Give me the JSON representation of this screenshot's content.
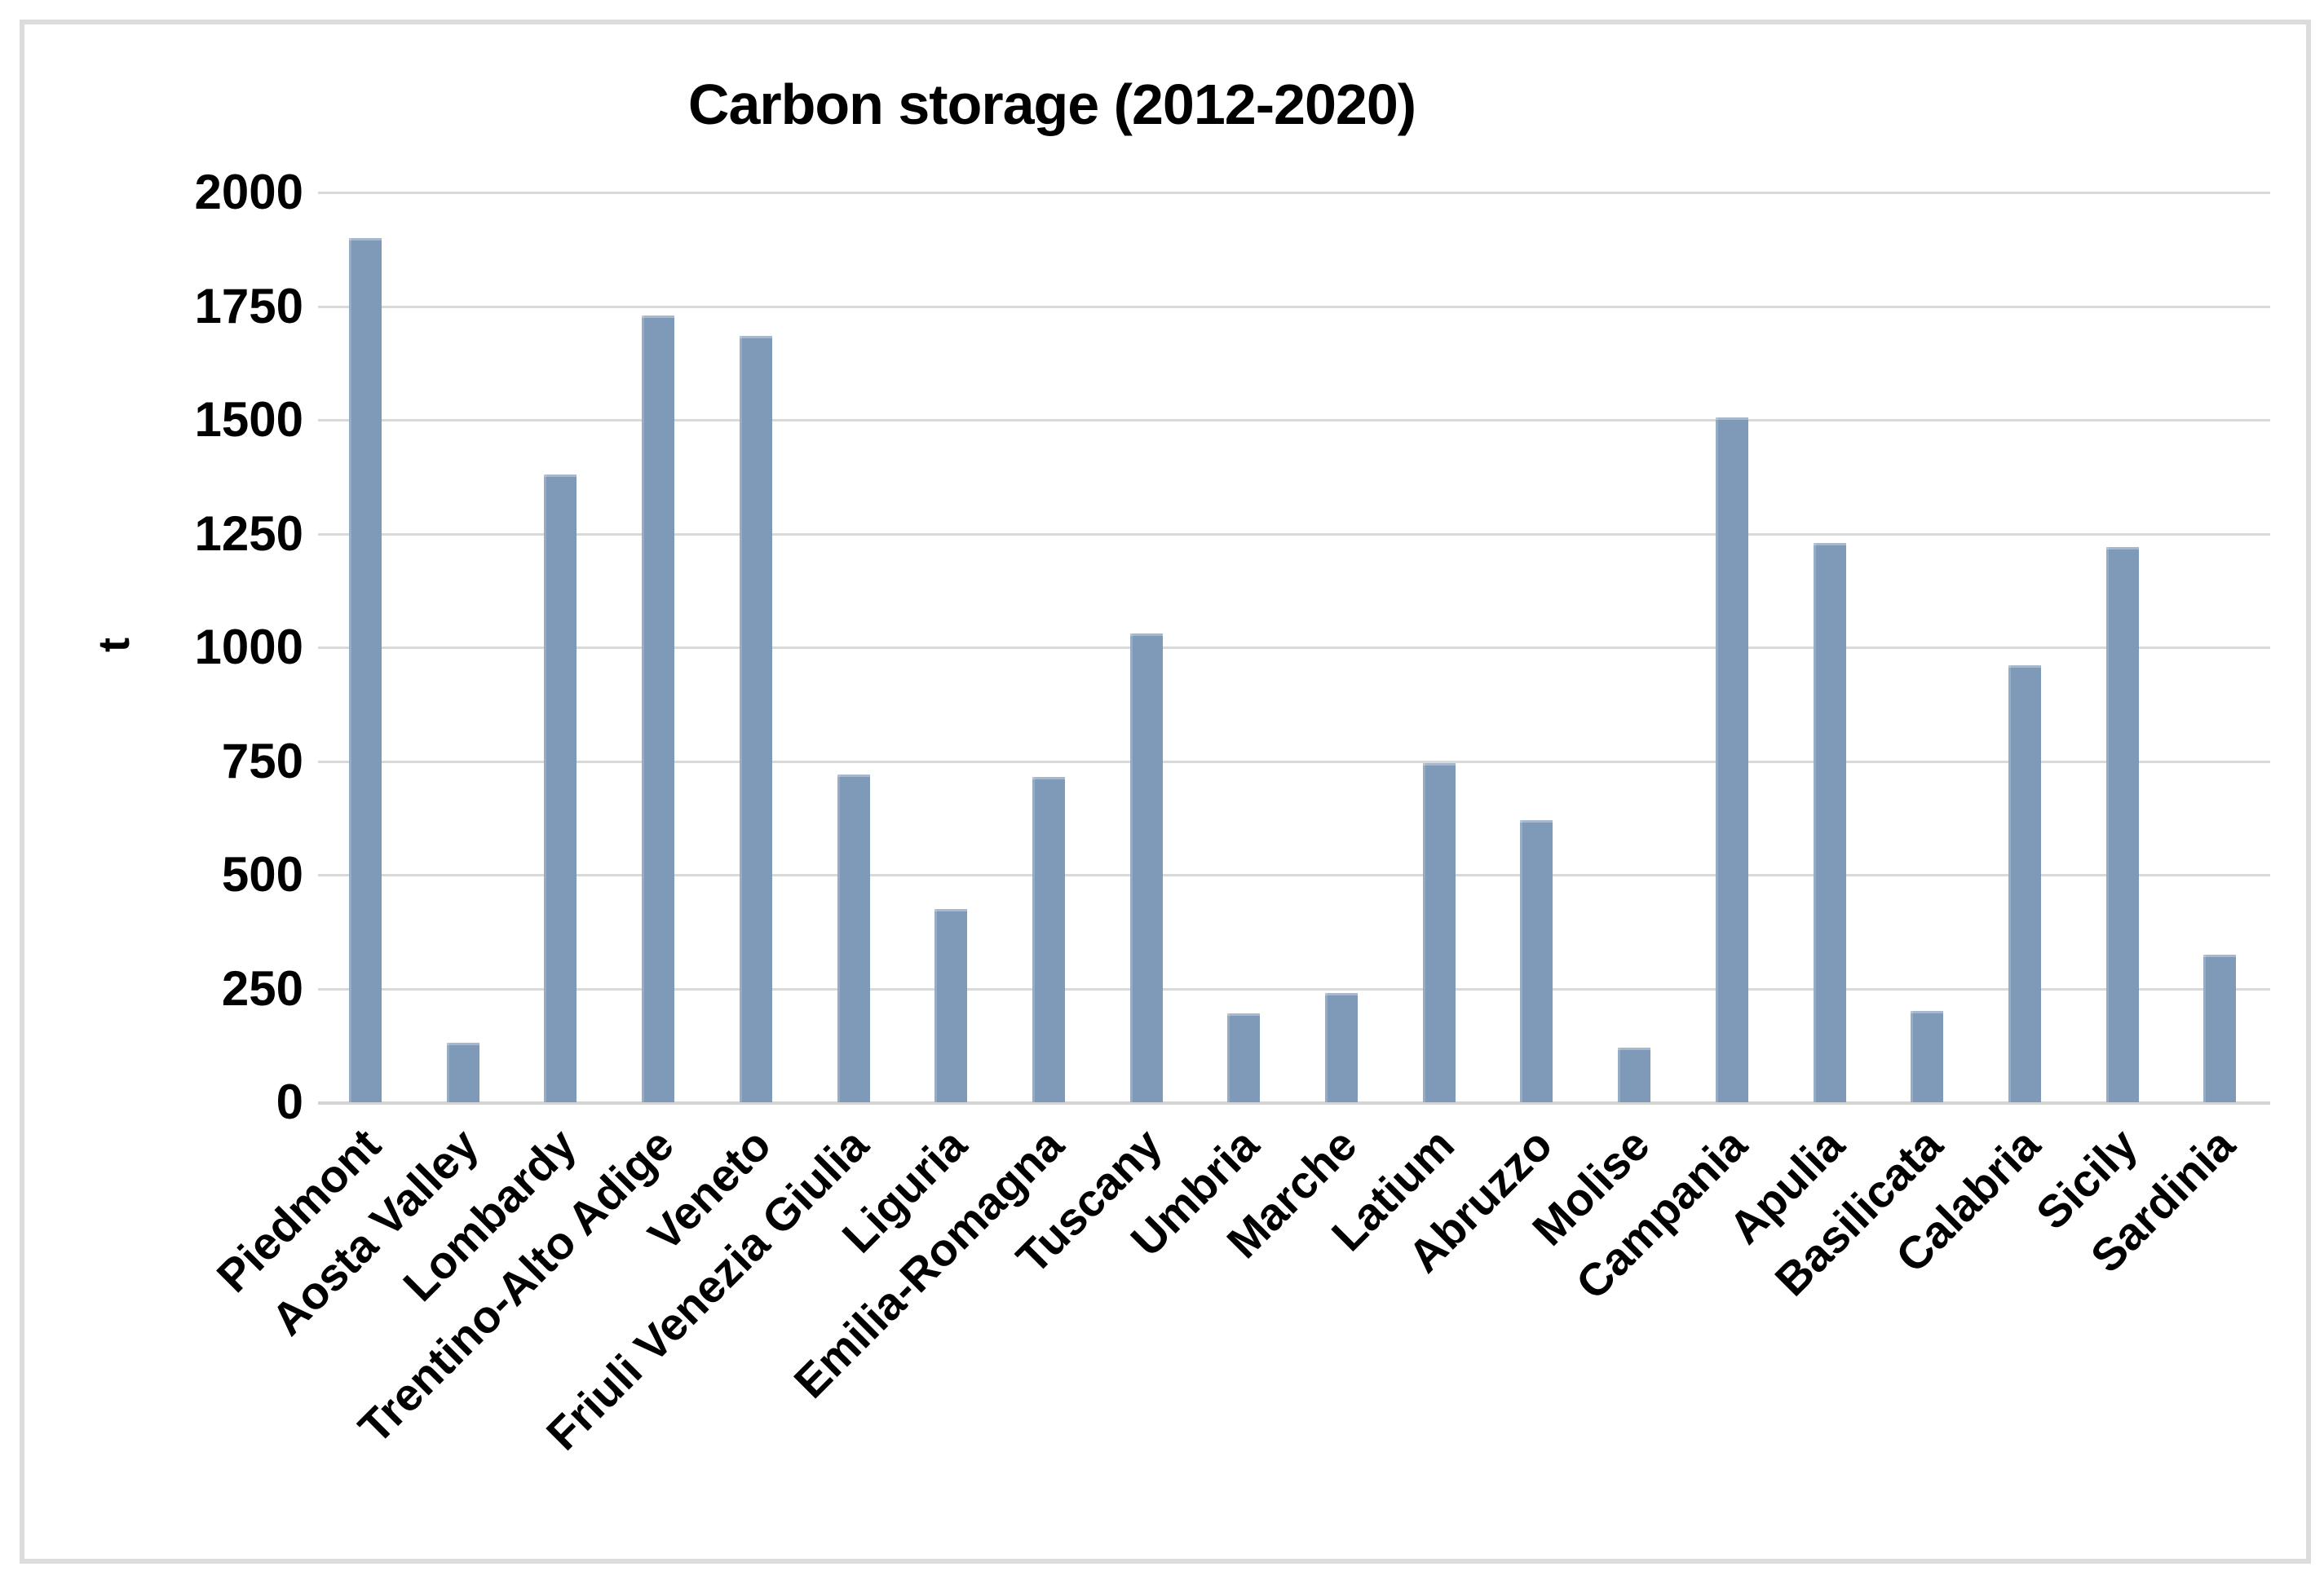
{
  "page": {
    "background_color": "#ffffff",
    "frame_border_color": "#dcdcdc"
  },
  "chart_data": {
    "type": "bar",
    "title": "Carbon storage (2012-2020)",
    "xlabel": "",
    "ylabel": "t",
    "categories": [
      "Piedmont",
      "Aosta Valley",
      "Lombardy",
      "Trentino-Alto Adige",
      "Veneto",
      "Friuli Venezia Giulia",
      "Liguria",
      "Emilia-Romagna",
      "Tuscany",
      "Umbria",
      "Marche",
      "Latium",
      "Abruzzo",
      "Molise",
      "Campania",
      "Apulia",
      "Basilicata",
      "Calabria",
      "Sicily",
      "Sardinia"
    ],
    "values": [
      1900,
      130,
      1380,
      1730,
      1685,
      720,
      425,
      715,
      1030,
      195,
      240,
      745,
      620,
      120,
      1505,
      1230,
      200,
      960,
      1220,
      325
    ],
    "ylim": [
      0,
      2000
    ],
    "yticks": [
      0,
      250,
      500,
      750,
      1000,
      1250,
      1500,
      1750,
      2000
    ],
    "grid": true,
    "legend": "none",
    "bar_color": "#7e9ab8",
    "gridline_color": "#d9d9d9",
    "text_color": "#000000"
  }
}
